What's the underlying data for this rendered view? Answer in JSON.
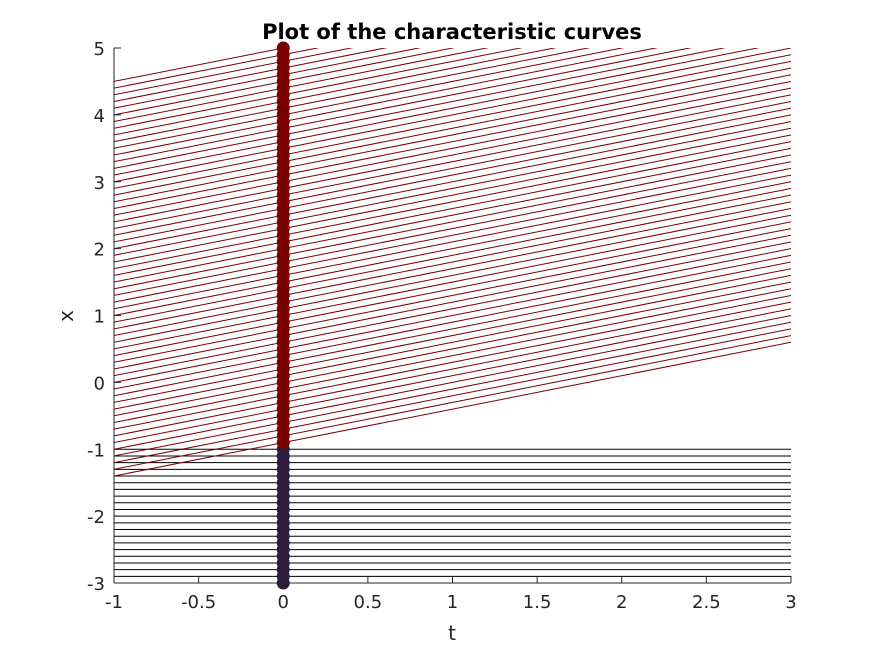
{
  "chart_data": {
    "type": "line",
    "title": "Plot of the characteristic curves",
    "xlabel": "t",
    "ylabel": "x",
    "xlim": [
      -1,
      3
    ],
    "ylim": [
      -3,
      5
    ],
    "grid": false,
    "legend": "none",
    "xticks": [
      "-1",
      "-0.5",
      "0",
      "0.5",
      "1",
      "1.5",
      "2",
      "2.5",
      "3"
    ],
    "yticks": [
      "-3",
      "-2",
      "-1",
      "0",
      "1",
      "2",
      "3",
      "4",
      "5"
    ],
    "x0_values": [
      -3.0,
      -2.9,
      -2.8,
      -2.7,
      -2.6,
      -2.5,
      -2.4,
      -2.3,
      -2.2,
      -2.1,
      -2.0,
      -1.9,
      -1.8,
      -1.7,
      -1.6,
      -1.5,
      -1.4,
      -1.3,
      -1.2,
      -1.1,
      -1.0,
      -0.9,
      -0.8,
      -0.7,
      -0.6,
      -0.5,
      -0.4,
      -0.3,
      -0.2,
      -0.1,
      0.0,
      0.1,
      0.2,
      0.3,
      0.4,
      0.5,
      0.6,
      0.7,
      0.8,
      0.9,
      1.0,
      1.1,
      1.2,
      1.3,
      1.4,
      1.5,
      1.6,
      1.7,
      1.8,
      1.9,
      2.0,
      2.1,
      2.2,
      2.3,
      2.4,
      2.5,
      2.6,
      2.7,
      2.8,
      2.9,
      3.0,
      3.1,
      3.2,
      3.3,
      3.4,
      3.5,
      3.6,
      3.7,
      3.8,
      3.9,
      4.0,
      4.1,
      4.2,
      4.3,
      4.4,
      4.5,
      4.6,
      4.7,
      4.8,
      4.9,
      5.0
    ],
    "series": [
      {
        "slope": 0,
        "x0_min": -3.0,
        "x0_max": -1.0,
        "color": "#2d1e3e"
      },
      {
        "slope": 0.5,
        "x0_min": -0.9,
        "x0_max": 5.0,
        "color": "#7a0000"
      }
    ],
    "line_color": "#000000"
  }
}
